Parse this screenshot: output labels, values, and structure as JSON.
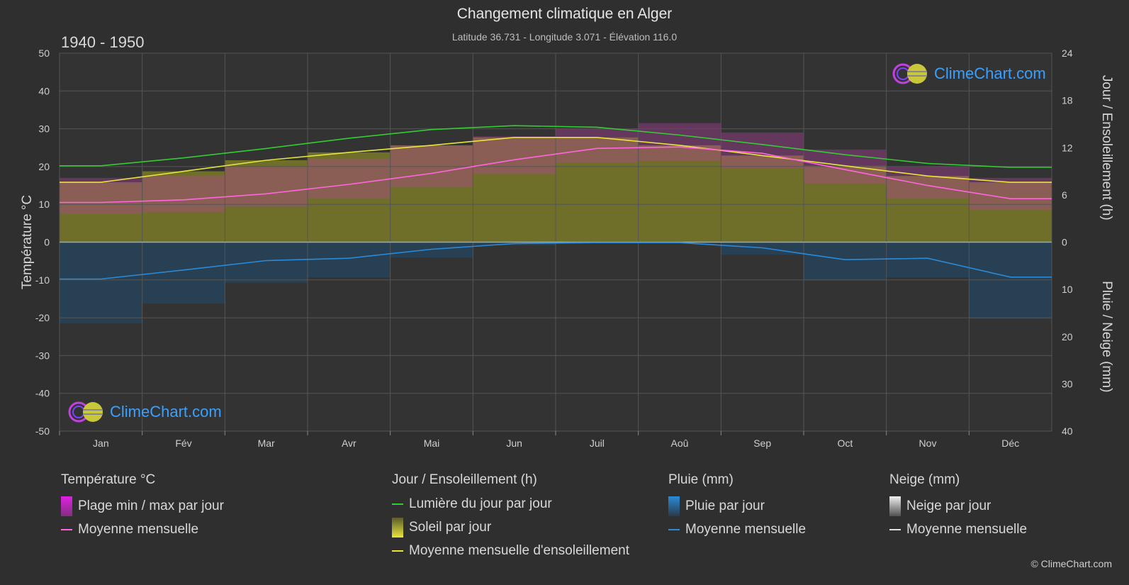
{
  "title": "Changement climatique en Alger",
  "subtitle": "Latitude 36.731 - Longitude 3.071 - Élévation 116.0",
  "period": "1940 - 1950",
  "logo_text": "ClimeChart.com",
  "copyright": "© ClimeChart.com",
  "chart_data": {
    "type": "line",
    "categories": [
      "Jan",
      "Fév",
      "Mar",
      "Avr",
      "Mai",
      "Jun",
      "Juil",
      "Aoû",
      "Sep",
      "Oct",
      "Nov",
      "Déc"
    ],
    "axes": {
      "left": {
        "label": "Température °C",
        "ticks": [
          50,
          40,
          30,
          20,
          10,
          0,
          -10,
          -20,
          -30,
          -40,
          -50
        ],
        "ylim": [
          -50,
          50
        ]
      },
      "right_top": {
        "label": "Jour / Ensoleillement (h)",
        "ticks": [
          24,
          18,
          12,
          6,
          0
        ],
        "ylim": [
          0,
          24
        ]
      },
      "right_bottom": {
        "label": "Pluie / Neige (mm)",
        "ticks": [
          0,
          10,
          20,
          30,
          40
        ],
        "ylim": [
          0,
          40
        ]
      }
    },
    "grid": true,
    "series": [
      {
        "name": "Lumière du jour par jour",
        "unit": "h",
        "color": "#33cc33",
        "values": [
          9.7,
          10.7,
          11.9,
          13.2,
          14.3,
          14.8,
          14.6,
          13.6,
          12.4,
          11.1,
          10.0,
          9.5
        ]
      },
      {
        "name": "Moyenne mensuelle d'ensoleillement",
        "unit": "h",
        "color": "#e6e63a",
        "values": [
          7.6,
          9.0,
          10.4,
          11.4,
          12.3,
          13.3,
          13.3,
          12.3,
          11.0,
          9.7,
          8.4,
          7.6
        ]
      },
      {
        "name": "Moyenne mensuelle",
        "group": "Température °C",
        "unit": "°C",
        "color": "#ff66dd",
        "values": [
          10.5,
          11.2,
          12.8,
          15.3,
          18.2,
          21.8,
          24.8,
          25.2,
          23.5,
          19.2,
          15.0,
          11.5
        ]
      },
      {
        "name": "Moyenne mensuelle",
        "group": "Pluie (mm)",
        "unit": "mm",
        "color": "#2a8ad8",
        "values": [
          7.8,
          5.9,
          3.9,
          3.4,
          1.5,
          0.3,
          0.1,
          0.1,
          1.2,
          3.7,
          3.4,
          7.4
        ]
      }
    ],
    "temperature_range": {
      "name": "Plage min / max par jour",
      "min": [
        7.5,
        8.0,
        9.5,
        11.5,
        14.5,
        18.0,
        21.0,
        21.5,
        19.5,
        15.5,
        11.5,
        8.5
      ],
      "max": [
        17.0,
        17.5,
        20.0,
        22.0,
        25.5,
        28.0,
        30.0,
        31.5,
        29.0,
        24.5,
        20.0,
        17.0
      ]
    }
  },
  "legend": {
    "groups": [
      {
        "title": "Température °C",
        "items": [
          {
            "label": "Plage min / max par jour",
            "swatch": "box",
            "color": "#e020e0"
          },
          {
            "label": "Moyenne mensuelle",
            "swatch": "line",
            "color": "#ff66dd"
          }
        ]
      },
      {
        "title": "Jour / Ensoleillement (h)",
        "items": [
          {
            "label": "Lumière du jour par jour",
            "swatch": "line",
            "color": "#33cc33"
          },
          {
            "label": "Soleil par jour",
            "swatch": "box",
            "color": "#d6d63a"
          },
          {
            "label": "Moyenne mensuelle d'ensoleillement",
            "swatch": "line",
            "color": "#e6e63a"
          }
        ]
      },
      {
        "title": "Pluie (mm)",
        "items": [
          {
            "label": "Pluie par jour",
            "swatch": "box",
            "color": "#2a8ad8"
          },
          {
            "label": "Moyenne mensuelle",
            "swatch": "line",
            "color": "#2a8ad8"
          }
        ]
      },
      {
        "title": "Neige (mm)",
        "items": [
          {
            "label": "Neige par jour",
            "swatch": "box",
            "color": "#d8d8d8"
          },
          {
            "label": "Moyenne mensuelle",
            "swatch": "line",
            "color": "#e0e0e0"
          }
        ]
      }
    ]
  }
}
